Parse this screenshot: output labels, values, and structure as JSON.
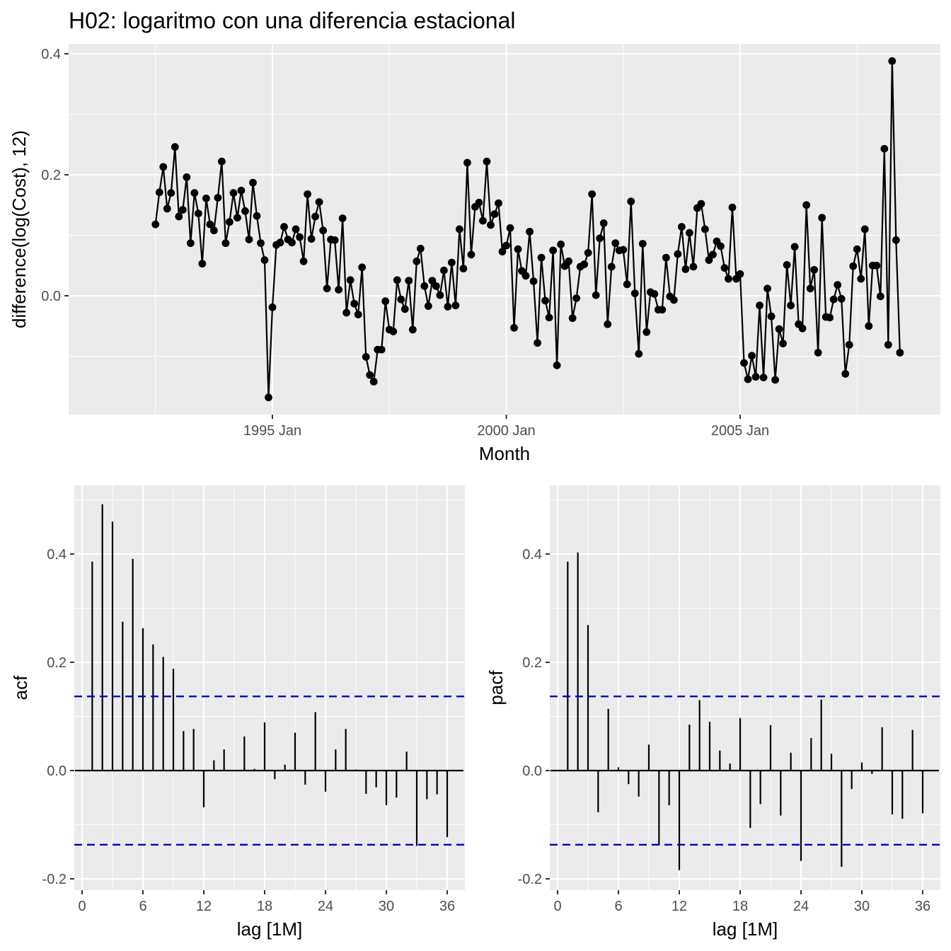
{
  "title": "H02: logaritmo con una diferencia estacional",
  "colors": {
    "series": "#000000",
    "ci": "#0000CC",
    "panel": "#EBEBEB",
    "grid": "#FFFFFF"
  },
  "chart_data": [
    {
      "type": "line",
      "title": "H02: logaritmo con una diferencia estacional",
      "xlabel": "Month",
      "ylabel": "difference(log(Cost), 12)",
      "x_start": "1992-07",
      "x_step": "1 month",
      "x_ticks": [
        "1995 Jan",
        "2000 Jan",
        "2005 Jan"
      ],
      "y_ticks": [
        "0.0",
        "0.2",
        "0.4"
      ],
      "ylim": [
        -0.17,
        0.41
      ],
      "grid": true,
      "markers": true,
      "values": [
        0.118,
        0.171,
        0.213,
        0.144,
        0.17,
        0.246,
        0.131,
        0.142,
        0.196,
        0.087,
        0.17,
        0.136,
        0.053,
        0.161,
        0.118,
        0.108,
        0.162,
        0.222,
        0.087,
        0.122,
        0.17,
        0.129,
        0.174,
        0.14,
        0.093,
        0.187,
        0.132,
        0.087,
        0.059,
        -0.168,
        -0.019,
        0.084,
        0.088,
        0.114,
        0.093,
        0.088,
        0.11,
        0.097,
        0.057,
        0.168,
        0.094,
        0.131,
        0.155,
        0.108,
        0.012,
        0.093,
        0.092,
        0.01,
        0.128,
        -0.028,
        0.026,
        -0.013,
        -0.031,
        0.047,
        -0.101,
        -0.131,
        -0.142,
        -0.089,
        -0.089,
        -0.009,
        -0.056,
        -0.059,
        0.026,
        -0.006,
        -0.022,
        0.025,
        -0.056,
        0.057,
        0.078,
        0.016,
        -0.017,
        0.025,
        0.016,
        0.001,
        0.042,
        -0.018,
        0.055,
        -0.016,
        0.11,
        0.045,
        0.22,
        0.068,
        0.147,
        0.154,
        0.124,
        0.222,
        0.117,
        0.135,
        0.153,
        0.073,
        0.083,
        0.112,
        -0.053,
        0.077,
        0.041,
        0.033,
        0.106,
        0.024,
        -0.078,
        0.063,
        -0.008,
        -0.036,
        0.075,
        -0.115,
        0.085,
        0.049,
        0.057,
        -0.037,
        -0.004,
        0.048,
        0.052,
        0.071,
        0.168,
        0.001,
        0.095,
        0.12,
        -0.047,
        0.048,
        0.087,
        0.075,
        0.076,
        0.019,
        0.156,
        0.004,
        -0.096,
        0.086,
        -0.06,
        0.006,
        0.003,
        -0.023,
        -0.023,
        0.063,
        -0.001,
        -0.007,
        0.069,
        0.114,
        0.044,
        0.104,
        0.048,
        0.145,
        0.152,
        0.11,
        0.059,
        0.068,
        0.09,
        0.082,
        0.046,
        0.028,
        0.146,
        0.028,
        0.036,
        -0.111,
        -0.138,
        -0.099,
        -0.134,
        -0.016,
        -0.135,
        0.012,
        -0.034,
        -0.139,
        -0.055,
        -0.079,
        0.051,
        -0.016,
        0.081,
        -0.047,
        -0.054,
        0.15,
        0.012,
        0.043,
        -0.094,
        0.129,
        -0.035,
        -0.036,
        -0.006,
        0.018,
        -0.005,
        -0.129,
        -0.081,
        0.049,
        0.077,
        0.028,
        0.11,
        -0.05,
        0.05,
        0.05,
        -0.001,
        0.243,
        -0.081,
        0.388,
        0.092,
        -0.094
      ]
    },
    {
      "type": "bar",
      "xlabel": "lag [1M]",
      "ylabel": "acf",
      "lags": [
        1,
        2,
        3,
        4,
        5,
        6,
        7,
        8,
        9,
        10,
        11,
        12,
        13,
        14,
        15,
        16,
        17,
        18,
        19,
        20,
        21,
        22,
        23,
        24,
        25,
        26,
        27,
        28,
        29,
        30,
        31,
        32,
        33,
        34,
        35,
        36
      ],
      "values": [
        0.386,
        0.492,
        0.46,
        0.275,
        0.391,
        0.263,
        0.233,
        0.21,
        0.188,
        0.073,
        0.077,
        -0.068,
        0.019,
        0.039,
        0.0,
        0.063,
        0.003,
        0.089,
        -0.016,
        0.011,
        0.07,
        -0.026,
        0.108,
        -0.039,
        0.039,
        0.077,
        0.002,
        -0.043,
        -0.031,
        -0.064,
        -0.05,
        0.035,
        -0.139,
        -0.053,
        -0.044,
        -0.123
      ],
      "ci": [
        -0.137,
        0.137
      ],
      "x_ticks": [
        "0",
        "6",
        "12",
        "18",
        "24",
        "30",
        "36"
      ],
      "y_ticks": [
        "-0.2",
        "0.0",
        "0.2",
        "0.4"
      ],
      "ylim": [
        -0.205,
        0.518
      ]
    },
    {
      "type": "bar",
      "xlabel": "lag [1M]",
      "ylabel": "pacf",
      "lags": [
        1,
        2,
        3,
        4,
        5,
        6,
        7,
        8,
        9,
        10,
        11,
        12,
        13,
        14,
        15,
        16,
        17,
        18,
        19,
        20,
        21,
        22,
        23,
        24,
        25,
        26,
        27,
        28,
        29,
        30,
        31,
        32,
        33,
        34,
        35,
        36
      ],
      "values": [
        0.386,
        0.403,
        0.269,
        -0.077,
        0.114,
        0.006,
        -0.025,
        -0.048,
        0.048,
        -0.138,
        -0.064,
        -0.184,
        0.085,
        0.13,
        0.09,
        0.037,
        0.013,
        0.097,
        -0.106,
        -0.062,
        0.084,
        -0.083,
        0.033,
        -0.167,
        0.06,
        0.131,
        0.031,
        -0.178,
        -0.034,
        0.015,
        -0.006,
        0.08,
        -0.081,
        -0.089,
        0.075,
        -0.079
      ],
      "ci": [
        -0.137,
        0.137
      ],
      "x_ticks": [
        "0",
        "6",
        "12",
        "18",
        "24",
        "30",
        "36"
      ],
      "y_ticks": [
        "-0.2",
        "0.0",
        "0.2",
        "0.4"
      ],
      "ylim": [
        -0.205,
        0.518
      ]
    }
  ]
}
